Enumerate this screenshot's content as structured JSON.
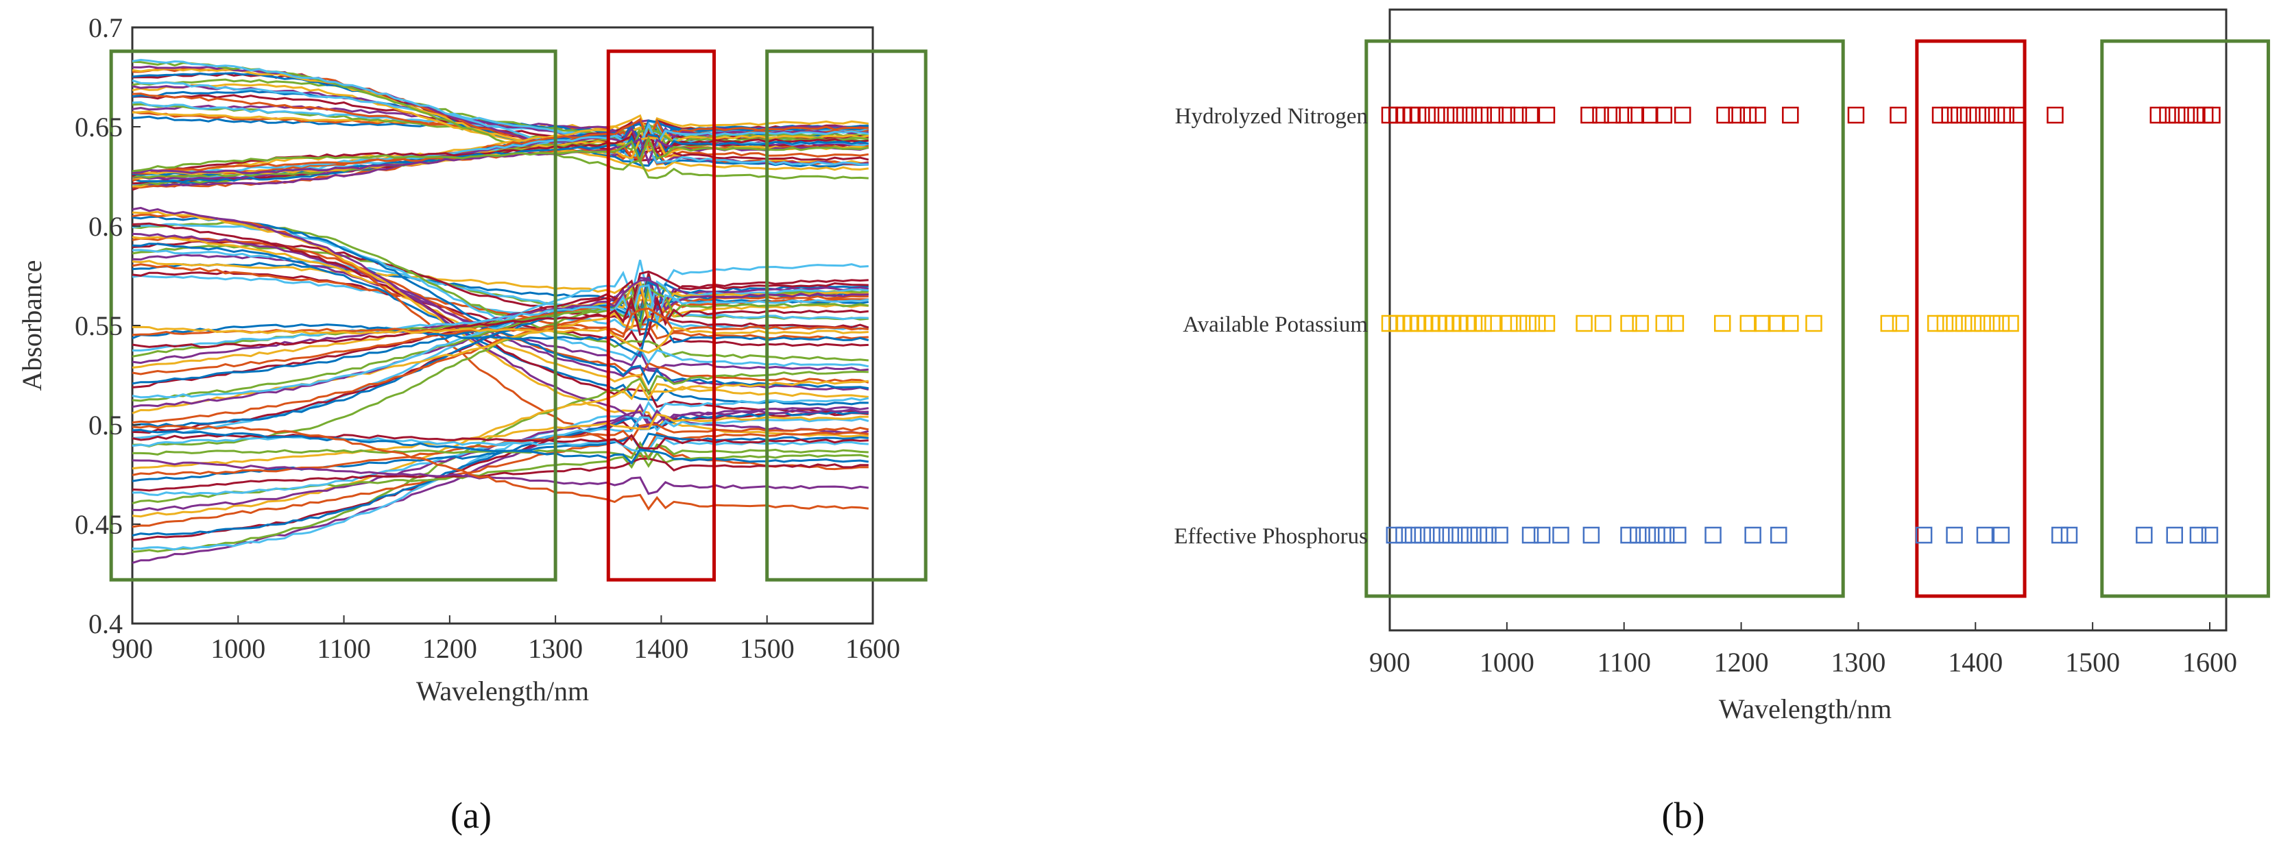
{
  "chart_data": [
    {
      "panel": "(a)",
      "type": "line",
      "xlabel": "Wavelength/nm",
      "ylabel": "Absorbance",
      "xlim": [
        900,
        1600
      ],
      "ylim": [
        0.4,
        0.7
      ],
      "xticks": [
        "900",
        "1000",
        "1100",
        "1200",
        "1300",
        "1400",
        "1500",
        "1600"
      ],
      "yticks": [
        "0.4",
        "0.45",
        "0.5",
        "0.55",
        "0.6",
        "0.65",
        "0.7"
      ],
      "grid": false,
      "legend": "none",
      "palette": [
        "#0072BD",
        "#D95319",
        "#EDB120",
        "#7E2F8E",
        "#77AC30",
        "#4DBEEE",
        "#A2142F"
      ],
      "spectra_groups": [
        {
          "start": [
            0.655,
            0.685
          ],
          "end": [
            0.62,
            0.655
          ],
          "dip": 0.004
        },
        {
          "start": [
            0.618,
            0.628
          ],
          "end": [
            0.638,
            0.655
          ],
          "dip": 0.006
        },
        {
          "start": [
            0.575,
            0.612
          ],
          "end": [
            0.47,
            0.58
          ],
          "dip": 0.004
        },
        {
          "start": [
            0.488,
            0.55
          ],
          "end": [
            0.54,
            0.585
          ],
          "dip": 0.01
        },
        {
          "start": [
            0.43,
            0.5
          ],
          "end": [
            0.455,
            0.54
          ],
          "dip": 0.004
        }
      ],
      "selected_regions": [
        {
          "x": [
            880,
            1300
          ],
          "y": [
            0.422,
            0.688
          ],
          "color": "#548235"
        },
        {
          "x": [
            1350,
            1450
          ],
          "y": [
            0.422,
            0.688
          ],
          "color": "#C00000"
        },
        {
          "x": [
            1500,
            1650
          ],
          "y": [
            0.422,
            0.688
          ],
          "color": "#548235"
        }
      ]
    },
    {
      "panel": "(b)",
      "type": "scatter",
      "xlabel": "Wavelength/nm",
      "xlim": [
        890,
        1610
      ],
      "xticks": [
        "900",
        "1000",
        "1100",
        "1200",
        "1300",
        "1400",
        "1500",
        "1600"
      ],
      "marker": "open-square",
      "series": [
        {
          "name": "Hydrolyzed Nitrogen",
          "color": "#C00000",
          "x": [
            900,
            906,
            912,
            918,
            924,
            932,
            940,
            948,
            956,
            964,
            972,
            980,
            990,
            1000,
            1010,
            1020,
            1034,
            1070,
            1080,
            1090,
            1100,
            1110,
            1122,
            1134,
            1150,
            1186,
            1196,
            1206,
            1214,
            1242,
            1298,
            1334,
            1370,
            1378,
            1386,
            1394,
            1402,
            1410,
            1418,
            1426,
            1436,
            1468,
            1556,
            1564,
            1572,
            1580,
            1588,
            1596,
            1602
          ]
        },
        {
          "name": "Available Potassium",
          "color": "#F5B800",
          "x": [
            900,
            906,
            912,
            918,
            924,
            930,
            936,
            942,
            948,
            954,
            960,
            966,
            972,
            980,
            988,
            1002,
            1010,
            1018,
            1026,
            1034,
            1066,
            1082,
            1104,
            1114,
            1134,
            1144,
            1184,
            1206,
            1218,
            1230,
            1242,
            1262,
            1326,
            1336,
            1366,
            1374,
            1382,
            1390,
            1398,
            1406,
            1414,
            1422,
            1430
          ]
        },
        {
          "name": "Effective Phosphorus",
          "color": "#4472C4",
          "x": [
            904,
            912,
            920,
            928,
            936,
            944,
            952,
            960,
            968,
            976,
            984,
            994,
            1020,
            1030,
            1046,
            1072,
            1104,
            1112,
            1120,
            1128,
            1136,
            1146,
            1176,
            1210,
            1232,
            1356,
            1382,
            1408,
            1422,
            1472,
            1480,
            1544,
            1570,
            1590,
            1600
          ]
        }
      ],
      "selected_regions": [
        {
          "x": [
            880,
            1287
          ],
          "color": "#548235"
        },
        {
          "x": [
            1350,
            1442
          ],
          "color": "#C00000"
        },
        {
          "x": [
            1508,
            1650
          ],
          "color": "#548235"
        }
      ]
    }
  ]
}
